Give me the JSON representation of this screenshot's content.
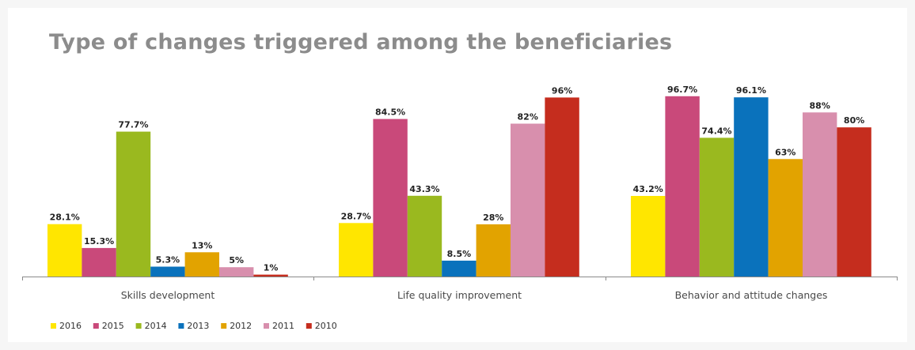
{
  "chart_data": {
    "type": "bar",
    "title": "Type of changes triggered among the beneficiaries",
    "xlabel": "",
    "ylabel": "",
    "ylim": [
      0,
      100
    ],
    "grid": false,
    "legend_position": "bottom-left",
    "categories": [
      "Skills development",
      "Life quality improvement",
      "Behavior and attitude changes"
    ],
    "series": [
      {
        "name": "2016",
        "color": "#ffe600",
        "values": [
          28.1,
          28.7,
          43.2
        ],
        "labels": [
          "28.1%",
          "28.7%",
          "43.2%"
        ]
      },
      {
        "name": "2015",
        "color": "#c9497a",
        "values": [
          15.3,
          84.5,
          96.7
        ],
        "labels": [
          "15.3%",
          "84.5%",
          "96.7%"
        ]
      },
      {
        "name": "2014",
        "color": "#9ab91f",
        "values": [
          77.7,
          43.3,
          74.4
        ],
        "labels": [
          "77.7%",
          "43.3%",
          "74.4%"
        ]
      },
      {
        "name": "2013",
        "color": "#0a72bc",
        "values": [
          5.3,
          8.5,
          96.1
        ],
        "labels": [
          "5.3%",
          "8.5%",
          "96.1%"
        ]
      },
      {
        "name": "2012",
        "color": "#e2a300",
        "values": [
          13,
          28,
          63
        ],
        "labels": [
          "13%",
          "28%",
          "63%"
        ]
      },
      {
        "name": "2011",
        "color": "#d88fad",
        "values": [
          5,
          82,
          88
        ],
        "labels": [
          "5%",
          "82%",
          "88%"
        ]
      },
      {
        "name": "2010",
        "color": "#c52d1e",
        "values": [
          1,
          96,
          80
        ],
        "labels": [
          "1%",
          "96%",
          "80%"
        ]
      }
    ]
  },
  "colors": {
    "background": "#f6f6f6",
    "panel": "#ffffff",
    "title": "#8c8c8c",
    "axis": "#8a8a8a"
  }
}
